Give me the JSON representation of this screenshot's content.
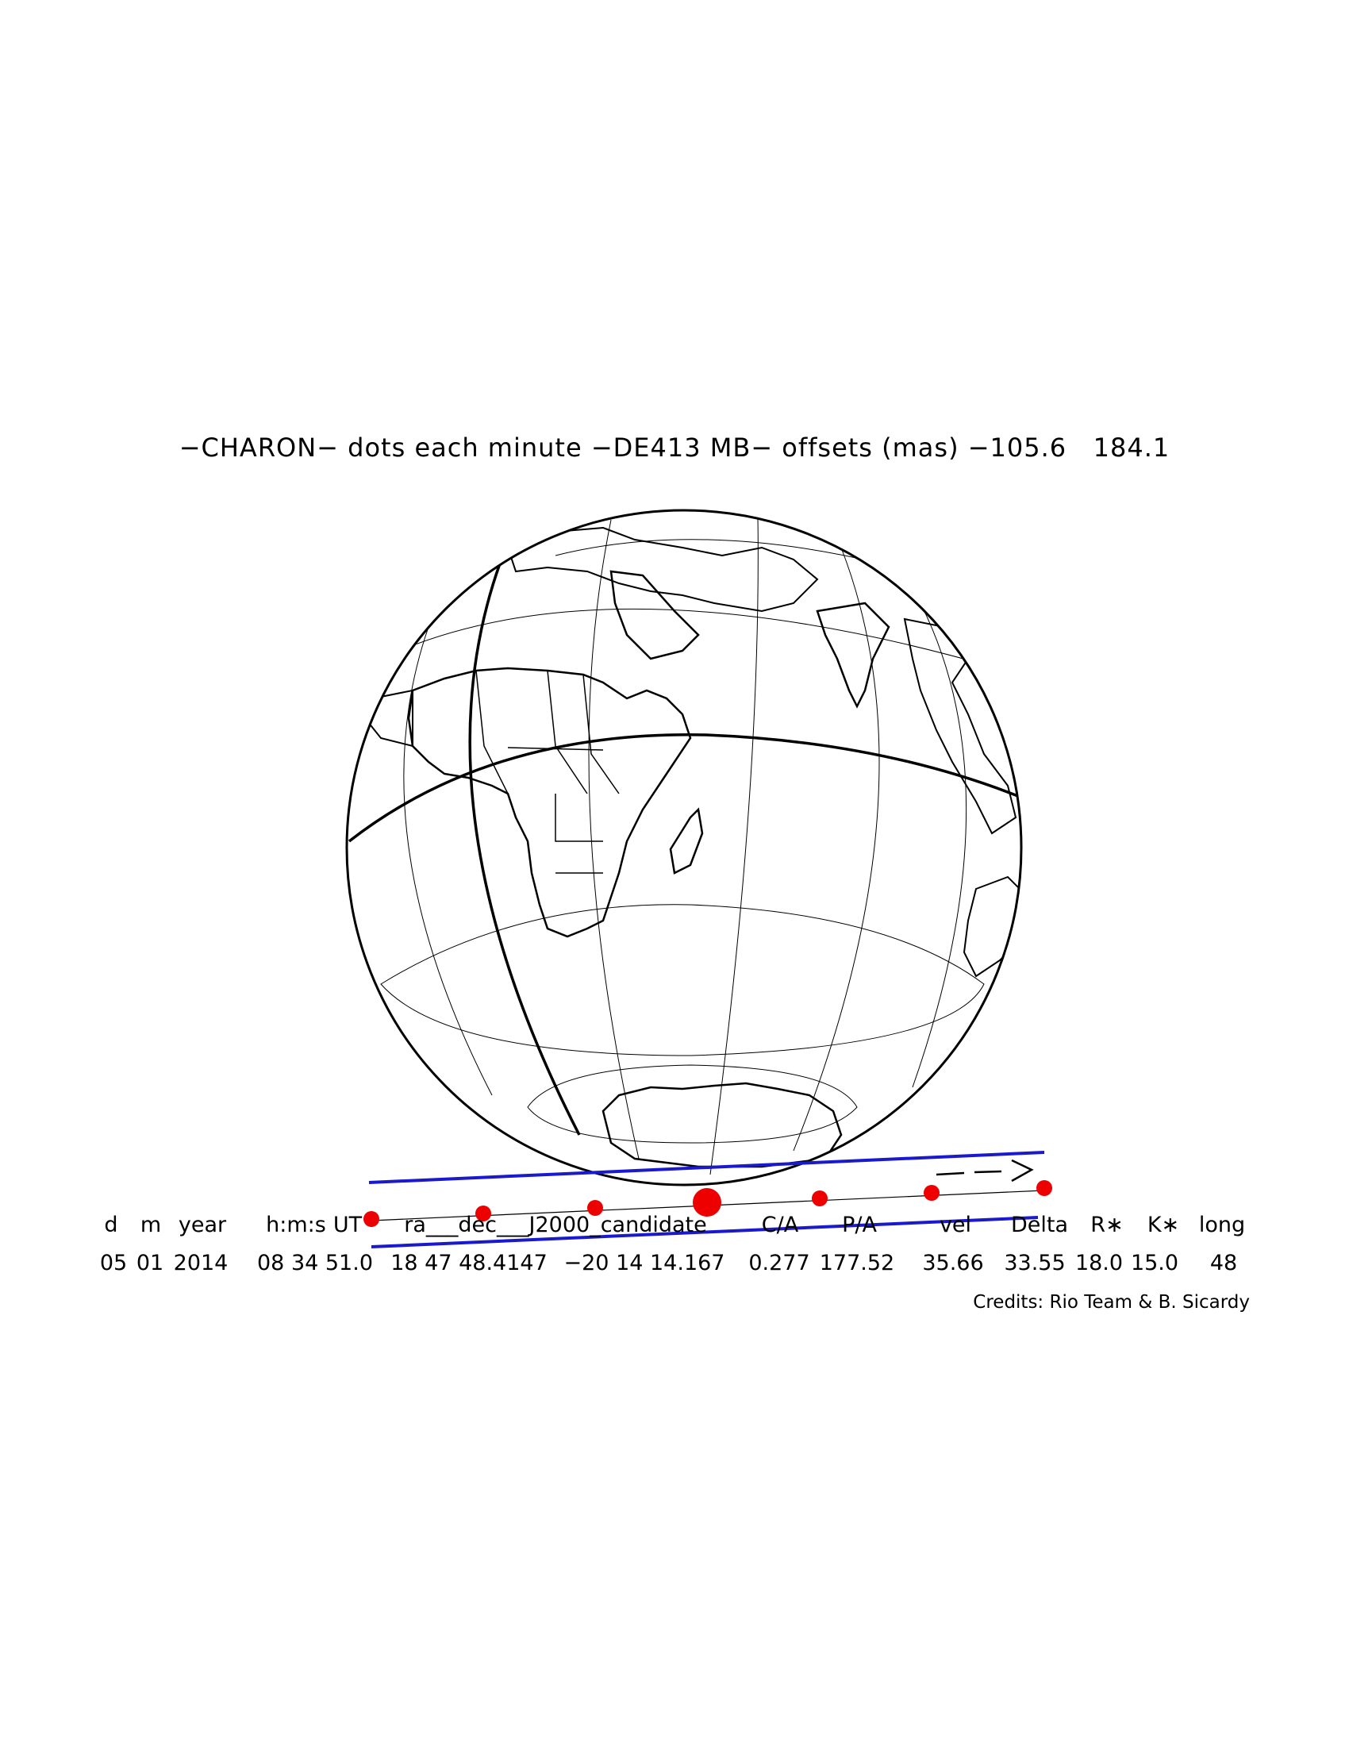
{
  "title": "−CHARON− dots each minute −DE413 MB− offsets (mas) −105.6   184.1",
  "table": {
    "headers": [
      "d",
      "m",
      "year",
      "h:m:s",
      "UT",
      "ra___dec___J2000_candidate",
      "C/A",
      "P/A",
      "vel",
      "Delta",
      "R∗",
      "K∗",
      "long"
    ],
    "values": [
      "05",
      "01",
      "2014",
      "08 34 51.0",
      "18 47 48.4147",
      "−20 14 14.167",
      "0.277",
      "177.52",
      "35.66",
      "33.55",
      "18.0",
      "15.0",
      "48"
    ]
  },
  "credits": "Credits: Rio Team & B. Sicardy",
  "globe": {
    "features": [
      "Africa",
      "Arabian Peninsula",
      "India",
      "Madagascar",
      "Antarctica",
      "Europe",
      "Southeast Asia"
    ],
    "colors": {
      "coastline": "#000000",
      "graticule": "#000000",
      "shadow_limit": "#1a1acc",
      "dots": "#ee0000"
    }
  },
  "track": {
    "dots_each_minute": 7,
    "closest_approach_index": 3,
    "direction": "left-to-right"
  }
}
